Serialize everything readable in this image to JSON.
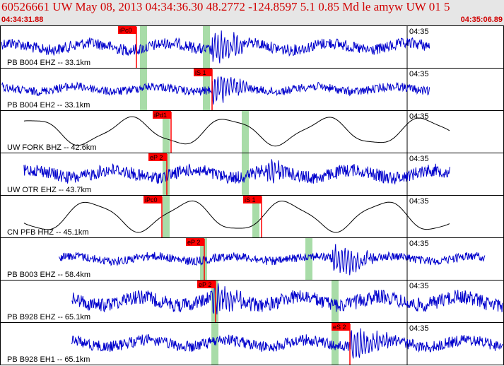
{
  "header": {
    "title": "60526661 UW May 08, 2013 04:34:36.30   48.2772 -124.8597  5.1 0.85 Md le amyw UW 01   5",
    "time_start": "04:34:31.88",
    "time_end": "04:35:06.89"
  },
  "time_tick": "04:35",
  "colors": {
    "header_text": "#d00000",
    "trace_blue": "#0000cc",
    "trace_black": "#000000",
    "pick_red": "#ff0000",
    "band_green": "#a8dca8"
  },
  "traces": [
    {
      "label": "PB B004 EHZ -- 33.1km",
      "color": "#0000cc",
      "pick": "iPc0",
      "start": 0.0,
      "end": 0.855,
      "style": "noise"
    },
    {
      "label": "PB B004 EH2 -- 33.1km",
      "color": "#0000cc",
      "pick": "iS 1",
      "start": 0.0,
      "end": 0.855,
      "style": "noise"
    },
    {
      "label": "UW FORK BHZ -- 42.6km",
      "color": "#000000",
      "pick": "iPd1",
      "start": 0.045,
      "end": 0.895,
      "style": "smooth"
    },
    {
      "label": "UW OTR EHZ -- 43.7km",
      "color": "#0000cc",
      "pick": "eP 2",
      "start": 0.045,
      "end": 0.895,
      "style": "noise"
    },
    {
      "label": "CN PFB HHZ -- 45.1km",
      "color": "#000000",
      "pick": "iPc0",
      "start": 0.045,
      "end": 0.895,
      "style": "smooth",
      "pick2": "iS 1"
    },
    {
      "label": "PB B003 EHZ -- 58.4km",
      "color": "#0000cc",
      "pick": "eP 2",
      "start": 0.115,
      "end": 0.965,
      "style": "noise"
    },
    {
      "label": "PB B928 EHZ -- 65.1km",
      "color": "#0000cc",
      "pick": "eP 2",
      "start": 0.14,
      "end": 1.0,
      "style": "noise"
    },
    {
      "label": "PB B928 EH1 -- 65.1km",
      "color": "#0000cc",
      "pick": "eS 2",
      "start": 0.14,
      "end": 1.0,
      "style": "noise"
    }
  ]
}
